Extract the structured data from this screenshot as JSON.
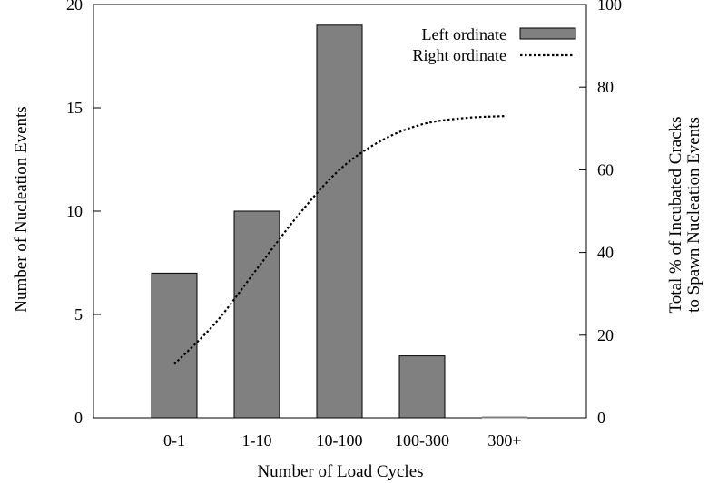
{
  "chart_data": {
    "type": "bar",
    "categories": [
      "0-1",
      "1-10",
      "10-100",
      "100-300",
      "300+"
    ],
    "series": [
      {
        "name": "Left ordinate",
        "type": "bar",
        "axis": "left",
        "values": [
          7,
          10,
          19,
          3,
          0
        ]
      },
      {
        "name": "Right ordinate",
        "type": "line",
        "axis": "right",
        "style": "dotted",
        "x": [
          0,
          0.5,
          1,
          1.5,
          2,
          2.5,
          3,
          3.5,
          4
        ],
        "values": [
          13,
          23,
          36,
          49,
          60,
          67,
          71,
          72.5,
          73
        ]
      }
    ],
    "xlabel": "Number of Load Cycles",
    "ylabel": "Number of Nucleation Events",
    "y2label": [
      "Total % of Incubated Cracks",
      "to Spawn Nucleation Events"
    ],
    "ylim": [
      0,
      20
    ],
    "y2lim": [
      0,
      100
    ],
    "yticks": [
      0,
      5,
      10,
      15,
      20
    ],
    "y2ticks": [
      0,
      20,
      40,
      60,
      80,
      100
    ],
    "legend_position": "top-right",
    "grid": false,
    "colors": {
      "bar_fill": "#808080",
      "bar_stroke": "#000000",
      "line": "#000000"
    }
  }
}
